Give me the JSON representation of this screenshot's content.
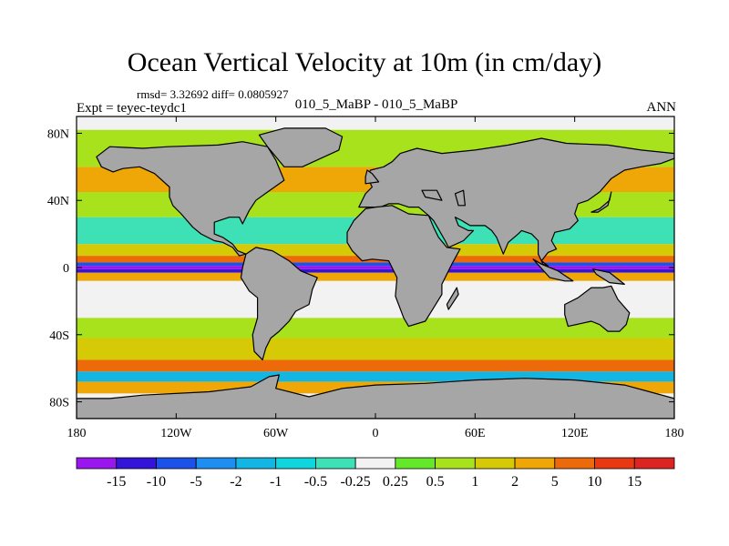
{
  "title": "Ocean Vertical Velocity at 10m (in cm/day)",
  "stats_text": "rmsd= 3.32692 diff= 0.0805927",
  "experiment_text": "Expt = teyec-teydc1",
  "case_text": "010_5_MaBP - 010_5_MaBP",
  "season_text": "ANN",
  "chart_data": {
    "type": "heatmap",
    "title": "Ocean Vertical Velocity at 10m (in cm/day)",
    "xlim": [
      -180,
      180
    ],
    "ylim": [
      -90,
      90
    ],
    "x_ticks": [
      {
        "value": -180,
        "label": "180"
      },
      {
        "value": -120,
        "label": "120W"
      },
      {
        "value": -60,
        "label": "60W"
      },
      {
        "value": 0,
        "label": "0"
      },
      {
        "value": 60,
        "label": "60E"
      },
      {
        "value": 120,
        "label": "120E"
      },
      {
        "value": 180,
        "label": "180"
      }
    ],
    "y_ticks": [
      {
        "value": 80,
        "label": "80N"
      },
      {
        "value": 40,
        "label": "40N"
      },
      {
        "value": 0,
        "label": "0"
      },
      {
        "value": -40,
        "label": "40S"
      },
      {
        "value": -80,
        "label": "80S"
      }
    ],
    "colorbar": {
      "levels": [
        "-15",
        "-10",
        "-5",
        "-2",
        "-1",
        "-0.5",
        "-0.25",
        "0.25",
        "0.5",
        "1",
        "2",
        "5",
        "10",
        "15"
      ],
      "colors": [
        "#9a16ef",
        "#3414d8",
        "#1c52ea",
        "#1e8ef0",
        "#13b6e3",
        "#0fd6dc",
        "#3ee0b6",
        "#f2f2f2",
        "#66e82a",
        "#a8e21c",
        "#d6ca06",
        "#eea706",
        "#ec6a0a",
        "#e83a12",
        "#dc2420"
      ]
    },
    "land_color": "#a6a6a6",
    "zonal_bands": [
      {
        "lat_min": -8,
        "lat_max": -3,
        "value": 3
      },
      {
        "lat_min": -3,
        "lat_max": -1,
        "value": -12
      },
      {
        "lat_min": -1,
        "lat_max": 1,
        "value": -20
      },
      {
        "lat_min": 1,
        "lat_max": 3,
        "value": -8
      },
      {
        "lat_min": 3,
        "lat_max": 7,
        "value": 8
      },
      {
        "lat_min": 7,
        "lat_max": 14,
        "value": 1.5
      },
      {
        "lat_min": 14,
        "lat_max": 30,
        "value": -0.4
      },
      {
        "lat_min": 30,
        "lat_max": 45,
        "value": 0.7
      },
      {
        "lat_min": 45,
        "lat_max": 60,
        "value": 2
      },
      {
        "lat_min": -30,
        "lat_max": -8,
        "value": 0
      },
      {
        "lat_min": -42,
        "lat_max": -30,
        "value": 0.6
      },
      {
        "lat_min": -55,
        "lat_max": -42,
        "value": 1.5
      },
      {
        "lat_min": -62,
        "lat_max": -55,
        "value": 6
      },
      {
        "lat_min": -68,
        "lat_max": -62,
        "value": -2
      },
      {
        "lat_min": -75,
        "lat_max": -68,
        "value": 4
      },
      {
        "lat_min": 60,
        "lat_max": 82,
        "value": 0.6
      }
    ],
    "land_polygons": [
      [
        [
          -168,
          66
        ],
        [
          -160,
          72
        ],
        [
          -140,
          71
        ],
        [
          -125,
          72
        ],
        [
          -95,
          73
        ],
        [
          -80,
          75
        ],
        [
          -65,
          72
        ],
        [
          -60,
          64
        ],
        [
          -55,
          52
        ],
        [
          -65,
          45
        ],
        [
          -72,
          40
        ],
        [
          -76,
          34
        ],
        [
          -80,
          26
        ],
        [
          -82,
          30
        ],
        [
          -88,
          30
        ],
        [
          -97,
          27
        ],
        [
          -97,
          20
        ],
        [
          -92,
          18
        ],
        [
          -86,
          14
        ],
        [
          -83,
          10
        ],
        [
          -78,
          8
        ],
        [
          -82,
          7
        ],
        [
          -86,
          12
        ],
        [
          -92,
          15
        ],
        [
          -97,
          16
        ],
        [
          -105,
          20
        ],
        [
          -110,
          24
        ],
        [
          -117,
          32
        ],
        [
          -122,
          37
        ],
        [
          -124,
          42
        ],
        [
          -124,
          48
        ],
        [
          -133,
          56
        ],
        [
          -142,
          60
        ],
        [
          -152,
          59
        ],
        [
          -158,
          57
        ],
        [
          -165,
          60
        ]
      ],
      [
        [
          -78,
          8
        ],
        [
          -72,
          12
        ],
        [
          -62,
          10
        ],
        [
          -52,
          4
        ],
        [
          -45,
          -2
        ],
        [
          -35,
          -6
        ],
        [
          -38,
          -13
        ],
        [
          -40,
          -22
        ],
        [
          -48,
          -26
        ],
        [
          -52,
          -32
        ],
        [
          -58,
          -38
        ],
        [
          -63,
          -42
        ],
        [
          -66,
          -48
        ],
        [
          -68,
          -55
        ],
        [
          -73,
          -50
        ],
        [
          -74,
          -40
        ],
        [
          -71,
          -30
        ],
        [
          -71,
          -18
        ],
        [
          -76,
          -14
        ],
        [
          -81,
          -6
        ],
        [
          -80,
          0
        ]
      ],
      [
        [
          -55,
          60
        ],
        [
          -44,
          60
        ],
        [
          -22,
          70
        ],
        [
          -20,
          78
        ],
        [
          -30,
          83
        ],
        [
          -55,
          83
        ],
        [
          -70,
          79
        ],
        [
          -65,
          72
        ]
      ],
      [
        [
          -10,
          36
        ],
        [
          -6,
          44
        ],
        [
          -2,
          48
        ],
        [
          -5,
          54
        ],
        [
          -3,
          58
        ],
        [
          5,
          60
        ],
        [
          10,
          63
        ],
        [
          15,
          68
        ],
        [
          25,
          71
        ],
        [
          40,
          68
        ],
        [
          60,
          70
        ],
        [
          80,
          73
        ],
        [
          100,
          77
        ],
        [
          115,
          74
        ],
        [
          140,
          73
        ],
        [
          160,
          70
        ],
        [
          180,
          68
        ],
        [
          180,
          65
        ],
        [
          172,
          62
        ],
        [
          160,
          60
        ],
        [
          150,
          58
        ],
        [
          142,
          53
        ],
        [
          135,
          45
        ],
        [
          128,
          40
        ],
        [
          122,
          38
        ],
        [
          120,
          32
        ],
        [
          122,
          28
        ],
        [
          117,
          23
        ],
        [
          108,
          21
        ],
        [
          106,
          16
        ],
        [
          109,
          11
        ],
        [
          104,
          9
        ],
        [
          100,
          4
        ],
        [
          104,
          1
        ],
        [
          101,
          2
        ],
        [
          98,
          8
        ],
        [
          98,
          16
        ],
        [
          94,
          20
        ],
        [
          88,
          22
        ],
        [
          86,
          20
        ],
        [
          80,
          15
        ],
        [
          77,
          8
        ],
        [
          73,
          18
        ],
        [
          70,
          22
        ],
        [
          66,
          25
        ],
        [
          57,
          25
        ],
        [
          52,
          28
        ],
        [
          48,
          30
        ],
        [
          50,
          25
        ],
        [
          56,
          22
        ],
        [
          59,
          22
        ],
        [
          53,
          16
        ],
        [
          44,
          12
        ],
        [
          42,
          16
        ],
        [
          35,
          28
        ],
        [
          32,
          31
        ],
        [
          26,
          36
        ],
        [
          20,
          36
        ],
        [
          14,
          38
        ],
        [
          8,
          38
        ],
        [
          3,
          36
        ]
      ],
      [
        [
          -17,
          15
        ],
        [
          -17,
          21
        ],
        [
          -13,
          28
        ],
        [
          -6,
          35
        ],
        [
          0,
          36
        ],
        [
          10,
          37
        ],
        [
          20,
          32
        ],
        [
          32,
          31
        ],
        [
          35,
          24
        ],
        [
          38,
          18
        ],
        [
          43,
          12
        ],
        [
          51,
          11
        ],
        [
          46,
          2
        ],
        [
          40,
          -10
        ],
        [
          40,
          -16
        ],
        [
          35,
          -24
        ],
        [
          30,
          -32
        ],
        [
          20,
          -35
        ],
        [
          17,
          -30
        ],
        [
          12,
          -17
        ],
        [
          13,
          -6
        ],
        [
          8,
          4
        ],
        [
          -2,
          5
        ],
        [
          -8,
          4
        ],
        [
          -14,
          10
        ]
      ],
      [
        [
          114,
          -22
        ],
        [
          122,
          -18
        ],
        [
          130,
          -12
        ],
        [
          137,
          -12
        ],
        [
          142,
          -11
        ],
        [
          146,
          -19
        ],
        [
          153,
          -27
        ],
        [
          151,
          -34
        ],
        [
          147,
          -38
        ],
        [
          140,
          -38
        ],
        [
          135,
          -34
        ],
        [
          130,
          -32
        ],
        [
          116,
          -35
        ],
        [
          114,
          -28
        ]
      ],
      [
        [
          -180,
          -90
        ],
        [
          180,
          -90
        ],
        [
          180,
          -78
        ],
        [
          165,
          -74
        ],
        [
          150,
          -70
        ],
        [
          120,
          -67
        ],
        [
          90,
          -66
        ],
        [
          60,
          -67
        ],
        [
          30,
          -69
        ],
        [
          0,
          -70
        ],
        [
          -20,
          -72
        ],
        [
          -40,
          -77
        ],
        [
          -60,
          -72
        ],
        [
          -58,
          -64
        ],
        [
          -64,
          -65
        ],
        [
          -75,
          -71
        ],
        [
          -100,
          -74
        ],
        [
          -140,
          -76
        ],
        [
          -160,
          -78
        ],
        [
          -180,
          -78
        ]
      ],
      [
        [
          95,
          5
        ],
        [
          105,
          -6
        ],
        [
          114,
          -8
        ],
        [
          119,
          -8
        ],
        [
          110,
          -2
        ],
        [
          100,
          2
        ]
      ],
      [
        [
          130,
          33
        ],
        [
          135,
          35
        ],
        [
          141,
          40
        ],
        [
          142,
          45
        ],
        [
          140,
          37
        ],
        [
          134,
          33
        ]
      ],
      [
        [
          -6,
          50
        ],
        [
          2,
          51
        ],
        [
          -2,
          56
        ],
        [
          -5,
          58
        ],
        [
          -6,
          54
        ]
      ],
      [
        [
          44,
          -25
        ],
        [
          50,
          -16
        ],
        [
          49,
          -12
        ],
        [
          43,
          -22
        ]
      ],
      [
        [
          131,
          -1
        ],
        [
          141,
          -3
        ],
        [
          150,
          -10
        ],
        [
          141,
          -9
        ],
        [
          133,
          -4
        ]
      ],
      [
        [
          50,
          37
        ],
        [
          54,
          37
        ],
        [
          53,
          46
        ],
        [
          48,
          44
        ]
      ],
      [
        [
          40,
          40
        ],
        [
          30,
          42
        ],
        [
          28,
          46
        ],
        [
          37,
          46
        ]
      ]
    ]
  }
}
